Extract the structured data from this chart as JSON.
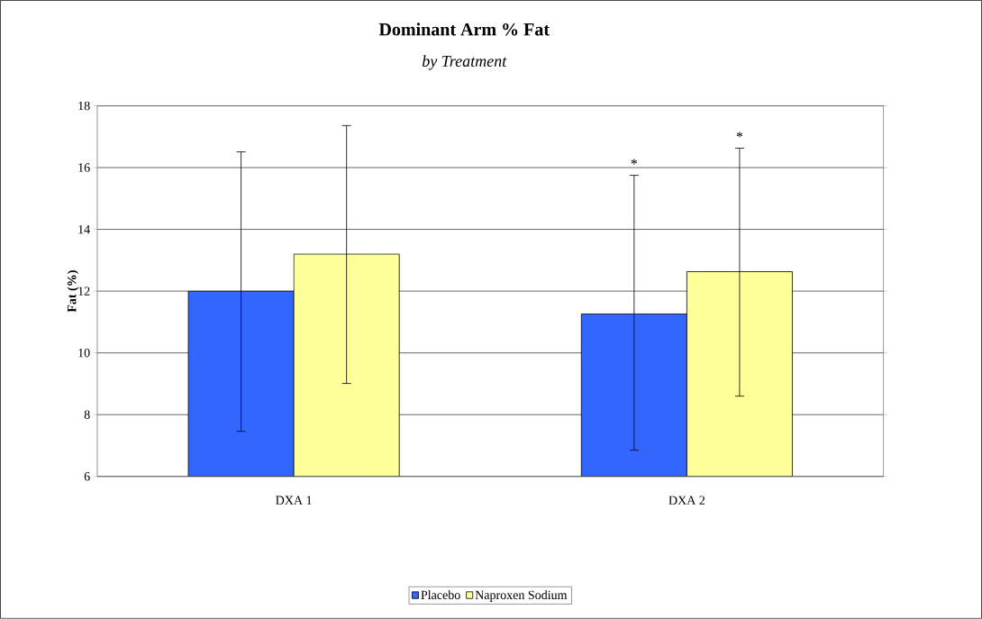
{
  "chart_data": {
    "type": "bar",
    "title": "Dominant Arm % Fat",
    "subtitle": "by Treatment",
    "ylabel": "Fat (%)",
    "categories": [
      "DXA 1",
      "DXA 2"
    ],
    "series": [
      {
        "name": "Placebo",
        "color": "#3366ff",
        "values": [
          12.0,
          11.26
        ],
        "errors": [
          [
            7.46,
            16.51
          ],
          [
            6.85,
            15.75
          ]
        ]
      },
      {
        "name": "Naproxen Sodium",
        "color": "#ffff99",
        "values": [
          13.2,
          12.63
        ],
        "errors": [
          [
            9.01,
            17.36
          ],
          [
            8.6,
            16.63
          ]
        ]
      }
    ],
    "annotations": [
      "*",
      "*"
    ],
    "ylim": [
      6,
      18
    ],
    "yticks": [
      6,
      8,
      10,
      12,
      14,
      16,
      18
    ],
    "grid": "y",
    "legend": "bottom"
  }
}
